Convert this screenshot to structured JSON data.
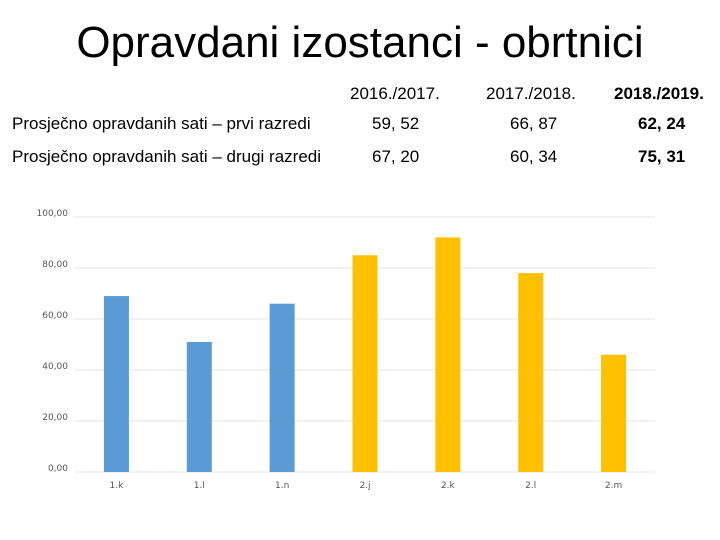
{
  "title": "Opravdani izostanci - obrtnici",
  "table": {
    "headers": [
      "2016./2017.",
      "2017./2018.",
      "2018./2019."
    ],
    "rows": [
      {
        "label": "Prosječno opravdanih sati – prvi razredi",
        "values": [
          "59, 52",
          "66, 87",
          "62, 24"
        ]
      },
      {
        "label": "Prosječno opravdanih sati – drugi razredi",
        "values": [
          "67, 20",
          "60, 34",
          "75, 31"
        ]
      }
    ]
  },
  "chart_data": {
    "type": "bar",
    "categories": [
      "1.k",
      "1.l",
      "1.n",
      "2.j",
      "2.k",
      "2.l",
      "2.m"
    ],
    "values": [
      69,
      51,
      66,
      85,
      92,
      78,
      46
    ],
    "colors": [
      "#5b9bd5",
      "#5b9bd5",
      "#5b9bd5",
      "#ffc000",
      "#ffc000",
      "#ffc000",
      "#ffc000"
    ],
    "ylim": [
      0,
      100
    ],
    "yticks": [
      "0,00",
      "20,00",
      "40,00",
      "60,00",
      "80,00",
      "100,00"
    ],
    "grid": true
  }
}
